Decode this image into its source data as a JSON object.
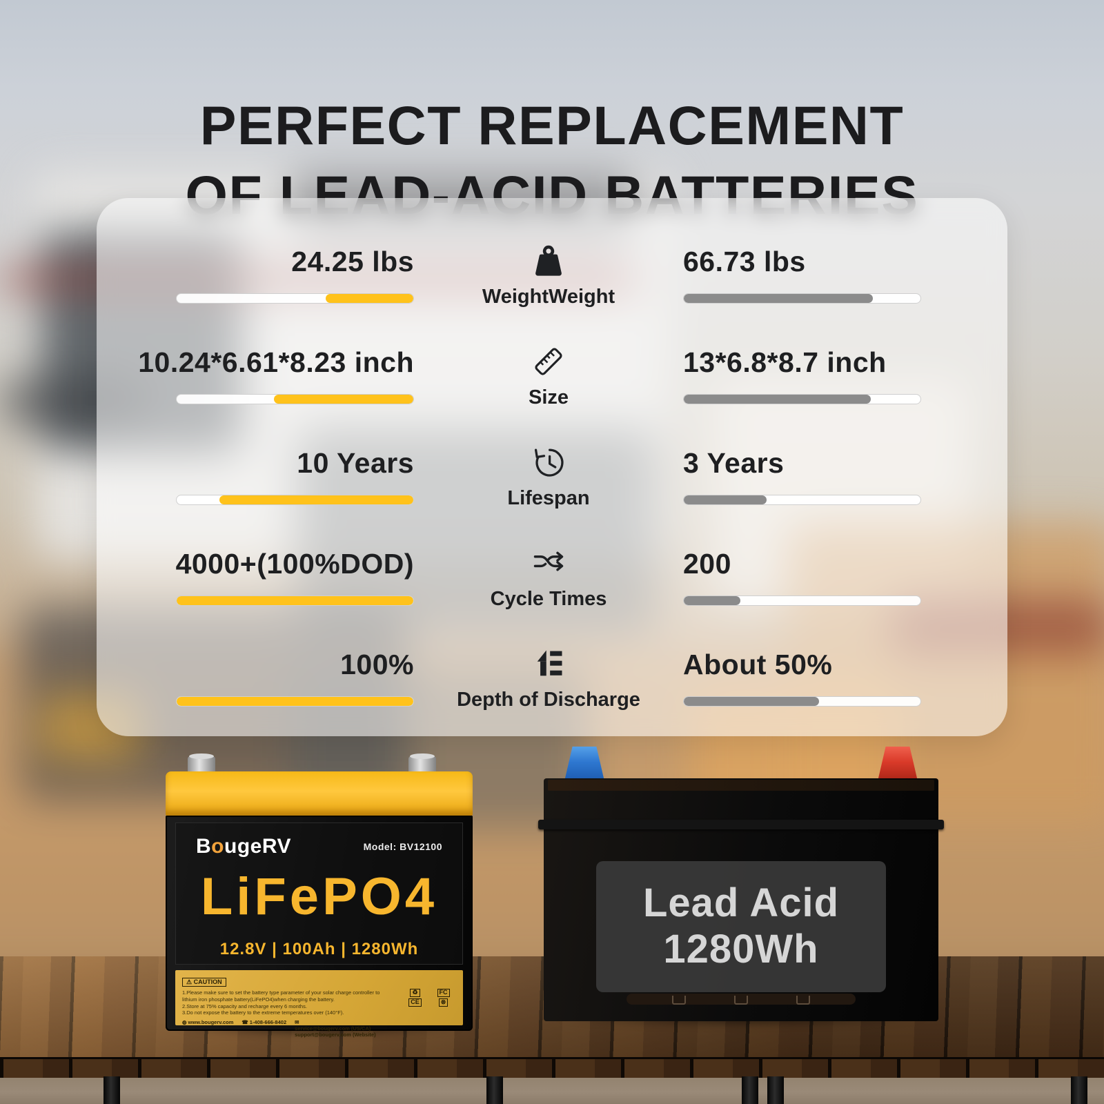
{
  "title": {
    "line1": "PERFECT REPLACEMENT",
    "line2": "OF LEAD-ACID BATTERIES"
  },
  "comparison": {
    "accent_color": "#FFC21B",
    "gray_color": "#8B8B8B",
    "rows": [
      {
        "id": "weight",
        "icon": "weight-icon",
        "label": "WeightWeight",
        "left_value": "24.25 lbs",
        "left_fill_pct": 37,
        "right_value": "66.73 lbs",
        "right_fill_pct": 80
      },
      {
        "id": "size",
        "icon": "ruler-icon",
        "label": "Size",
        "left_value": "10.24*6.61*8.23 inch",
        "left_fill_pct": 59,
        "right_value": "13*6.8*8.7 inch",
        "right_fill_pct": 79
      },
      {
        "id": "lifespan",
        "icon": "lifespan-clock-icon",
        "label": "Lifespan",
        "left_value": "10 Years",
        "left_fill_pct": 82,
        "right_value": "3 Years",
        "right_fill_pct": 35
      },
      {
        "id": "cycle-times",
        "icon": "shuffle-icon",
        "label": "Cycle Times",
        "left_value": "4000+(100%DOD)",
        "left_fill_pct": 100,
        "right_value": "200",
        "right_fill_pct": 24
      },
      {
        "id": "depth-of-discharge",
        "icon": "discharge-icon",
        "label": "Depth of Discharge",
        "left_value": "100%",
        "left_fill_pct": 100,
        "right_value": "About 50%",
        "right_fill_pct": 57
      }
    ]
  },
  "lifepo4_battery": {
    "brand": {
      "part1": "B",
      "accent": "o",
      "part2": "ugeRV"
    },
    "model": "Model: BV12100",
    "name": "LiFePO4",
    "specs": "12.8V  |  100Ah  |  1280Wh",
    "caution": {
      "badge": "⚠ CAUTION",
      "line1": "1.Please make sure to set the battery type parameter of your solar charge controller to lithium iron phosphate battery(LiFePO4)when charging the battery.",
      "line2": "2.Store at 75% capacity and recharge every 6 months.",
      "line3": "3.Do not expose the battery to the extreme temperatures over (140°F).",
      "website": "www.bougerv.com",
      "phone": "1-408-666-8402",
      "email1": "service@bougerv.com (US/CA)",
      "email2": "support@bougerv.com (Website)",
      "cert_marks": [
        "♻",
        "FC",
        "CE",
        "⊗"
      ]
    }
  },
  "lead_acid_battery": {
    "line1": "Lead Acid",
    "line2": "1280Wh"
  }
}
